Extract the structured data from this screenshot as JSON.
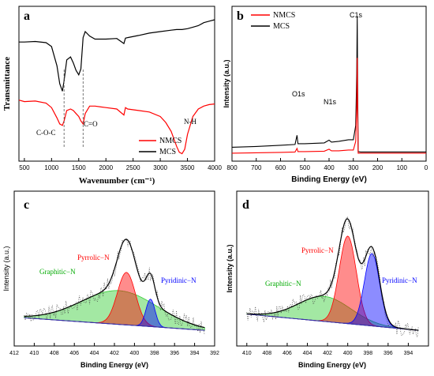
{
  "chart_data": [
    {
      "panel": "a",
      "type": "line",
      "xlabel": "Wavenumber (cm⁻¹)",
      "ylabel": "Transmittance",
      "xlim": [
        400,
        4000
      ],
      "xticks": [
        500,
        1000,
        1500,
        2000,
        2500,
        3000,
        3500,
        4000
      ],
      "reversed_x": false,
      "series": [
        {
          "name": "MCS",
          "color": "#000000",
          "x": [
            400,
            500,
            700,
            900,
            1000,
            1100,
            1150,
            1200,
            1230,
            1280,
            1350,
            1400,
            1450,
            1500,
            1540,
            1580,
            1620,
            1700,
            1800,
            2000,
            2200,
            2330,
            2360,
            2400,
            2600,
            2800,
            3000,
            3200,
            3300,
            3400,
            3500,
            3600,
            3700,
            3800,
            3900,
            4000
          ],
          "y": [
            0.2,
            0.2,
            0.22,
            0.18,
            0.05,
            -0.6,
            -1.2,
            -1.45,
            -1.1,
            -0.4,
            -0.3,
            -0.5,
            -0.75,
            -0.9,
            -0.7,
            0.35,
            0.55,
            0.4,
            0.3,
            0.3,
            0.32,
            0.15,
            0.33,
            0.35,
            0.42,
            0.5,
            0.55,
            0.6,
            0.62,
            0.62,
            0.65,
            0.7,
            0.75,
            0.85,
            0.9,
            0.95
          ]
        },
        {
          "name": "NMCS",
          "color": "#ff0000",
          "x": [
            400,
            500,
            700,
            900,
            1000,
            1100,
            1150,
            1200,
            1230,
            1280,
            1350,
            1400,
            1450,
            1500,
            1540,
            1580,
            1620,
            1700,
            1800,
            2000,
            2200,
            2330,
            2360,
            2400,
            2600,
            2800,
            3000,
            3100,
            3200,
            3300,
            3350,
            3400,
            3450,
            3500,
            3600,
            3700,
            3800,
            3900,
            4000
          ],
          "y": [
            -1.75,
            -1.8,
            -1.78,
            -1.85,
            -2.0,
            -2.35,
            -2.55,
            -2.6,
            -2.45,
            -2.1,
            -2.05,
            -2.1,
            -2.2,
            -2.3,
            -2.45,
            -2.55,
            -2.2,
            -1.95,
            -1.95,
            -2.0,
            -2.05,
            -2.25,
            -2.0,
            -2.05,
            -2.1,
            -2.15,
            -2.3,
            -2.5,
            -2.8,
            -3.3,
            -3.5,
            -3.55,
            -3.4,
            -2.9,
            -2.3,
            -2.05,
            -1.95,
            -1.9,
            -1.88
          ]
        }
      ],
      "annotations": [
        "C-O-C",
        "C=O",
        "N-H"
      ],
      "panel_label": "a",
      "legend": [
        "NMCS",
        "MCS"
      ]
    },
    {
      "panel": "b",
      "type": "line",
      "xlabel": "Binding Energy (eV)",
      "ylabel": "Intensity (a.u.)",
      "xlim": [
        800,
        0
      ],
      "xticks": [
        800,
        700,
        600,
        500,
        400,
        300,
        200,
        100,
        0
      ],
      "reversed_x": true,
      "series": [
        {
          "name": "MCS",
          "color": "#000000",
          "x": [
            800,
            700,
            600,
            540,
            532,
            528,
            500,
            420,
            400,
            390,
            360,
            320,
            300,
            290,
            286,
            284,
            282,
            280,
            270,
            200,
            100,
            0
          ],
          "y": [
            0.15,
            0.17,
            0.2,
            0.22,
            0.45,
            0.24,
            0.24,
            0.26,
            0.33,
            0.28,
            0.3,
            0.34,
            0.34,
            0.7,
            2.0,
            3.45,
            1.5,
            0.04,
            0.03,
            0.03,
            0.03,
            0.03
          ]
        },
        {
          "name": "NMCS",
          "color": "#ff0000",
          "x": [
            800,
            700,
            600,
            540,
            532,
            528,
            500,
            420,
            400,
            390,
            360,
            320,
            300,
            290,
            286,
            284,
            282,
            280,
            270,
            200,
            100,
            0
          ],
          "y": [
            0.0,
            0.01,
            0.02,
            0.03,
            0.12,
            0.04,
            0.04,
            0.05,
            0.1,
            0.06,
            0.06,
            0.08,
            0.08,
            0.3,
            1.2,
            2.4,
            0.9,
            0.0,
            0.0,
            0.0,
            0.0,
            0.0
          ]
        }
      ],
      "annotations": [
        "O1s",
        "N1s",
        "C1s"
      ],
      "panel_label": "b",
      "legend": [
        "NMCS",
        "MCS"
      ]
    },
    {
      "panel": "c",
      "type": "area",
      "xlabel": "Binding Energy (eV)",
      "ylabel": "Intensity (a.u.)",
      "xlim": [
        412,
        392
      ],
      "xticks": [
        412,
        410,
        408,
        406,
        404,
        402,
        400,
        398,
        396,
        394,
        392
      ],
      "reversed_x": true,
      "peaks": [
        {
          "name": "Pyrrolic−N",
          "center": 400.8,
          "height": 0.42,
          "width": 0.9,
          "color": "#ff0000"
        },
        {
          "name": "Graphitic−N",
          "center": 401.5,
          "height": 0.27,
          "width": 3.8,
          "color": "#33cc33"
        },
        {
          "name": "Pyridinic−N",
          "center": 398.4,
          "height": 0.22,
          "width": 0.45,
          "color": "#0000ff"
        }
      ],
      "data_range": [
        411,
        393
      ],
      "panel_label": "c"
    },
    {
      "panel": "d",
      "type": "area",
      "xlabel": "Binding Energy (eV)",
      "ylabel": "Intensity (a.u.)",
      "xlim": [
        411,
        392
      ],
      "xticks": [
        410,
        408,
        406,
        404,
        402,
        400,
        398,
        396,
        394
      ],
      "reversed_x": true,
      "peaks": [
        {
          "name": "Pyrrolic−N",
          "center": 400.0,
          "height": 0.7,
          "width": 0.85,
          "color": "#ff0000"
        },
        {
          "name": "Graphitic−N",
          "center": 402.3,
          "height": 0.2,
          "width": 2.6,
          "color": "#33cc33"
        },
        {
          "name": "Pyridinic−N",
          "center": 397.6,
          "height": 0.58,
          "width": 0.75,
          "color": "#0000ff"
        }
      ],
      "data_range": [
        410,
        393
      ],
      "panel_label": "d"
    }
  ]
}
